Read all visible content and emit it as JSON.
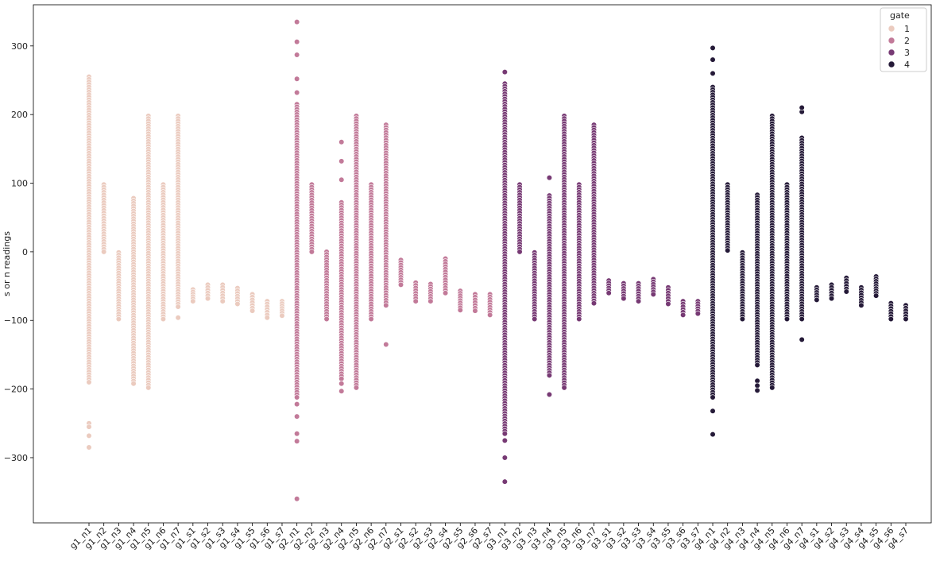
{
  "chart_data": {
    "type": "scatter",
    "title": "",
    "xlabel": "",
    "ylabel": "s or n readings",
    "ylim": [
      -395,
      360
    ],
    "yticks": [
      -300,
      -200,
      -100,
      0,
      100,
      200,
      300
    ],
    "grid": false,
    "legend": {
      "title": "gate",
      "placement": "top-right",
      "entries": [
        {
          "label": "1",
          "color": "#ebcbbf"
        },
        {
          "label": "2",
          "color": "#c27a99"
        },
        {
          "label": "3",
          "color": "#773a74"
        },
        {
          "label": "4",
          "color": "#251a38"
        }
      ]
    },
    "categories": [
      "g1_n1",
      "g1_n2",
      "g1_n3",
      "g1_n4",
      "g1_n5",
      "g1_n6",
      "g1_n7",
      "g1_s1",
      "g1_s2",
      "g1_s3",
      "g1_s4",
      "g1_s5",
      "g1_s6",
      "g1_s7",
      "g2_n1",
      "g2_n2",
      "g2_n3",
      "g2_n4",
      "g2_n5",
      "g2_n6",
      "g2_n7",
      "g2_s1",
      "g2_s2",
      "g2_s3",
      "g2_s4",
      "g2_s5",
      "g2_s6",
      "g2_s7",
      "g3_n1",
      "g3_n2",
      "g3_n3",
      "g3_n4",
      "g3_n5",
      "g3_n6",
      "g3_n7",
      "g3_s1",
      "g3_s2",
      "g3_s3",
      "g3_s4",
      "g3_s5",
      "g3_s6",
      "g3_s7",
      "g4_n1",
      "g4_n2",
      "g4_n3",
      "g4_n4",
      "g4_n5",
      "g4_n6",
      "g4_n7",
      "g4_s1",
      "g4_s2",
      "g4_s3",
      "g4_s4",
      "g4_s5",
      "g4_s6",
      "g4_s7"
    ],
    "series": [
      {
        "gate": "1",
        "color": "#ebcbbf",
        "columns": [
          {
            "category": "g1_n1",
            "min": -190,
            "max": 255,
            "outliers": [
              -250,
              -255,
              -268,
              -285
            ]
          },
          {
            "category": "g1_n2",
            "min": 0,
            "max": 98,
            "outliers": []
          },
          {
            "category": "g1_n3",
            "min": -98,
            "max": -1,
            "outliers": []
          },
          {
            "category": "g1_n4",
            "min": -192,
            "max": 78,
            "outliers": []
          },
          {
            "category": "g1_n5",
            "min": -198,
            "max": 198,
            "outliers": []
          },
          {
            "category": "g1_n6",
            "min": -98,
            "max": 98,
            "outliers": []
          },
          {
            "category": "g1_n7",
            "min": -80,
            "max": 198,
            "outliers": [
              -96
            ]
          },
          {
            "category": "g1_s1",
            "min": -72,
            "max": -55,
            "outliers": []
          },
          {
            "category": "g1_s2",
            "min": -68,
            "max": -48,
            "outliers": []
          },
          {
            "category": "g1_s3",
            "min": -72,
            "max": -48,
            "outliers": []
          },
          {
            "category": "g1_s4",
            "min": -76,
            "max": -53,
            "outliers": []
          },
          {
            "category": "g1_s5",
            "min": -86,
            "max": -62,
            "outliers": []
          },
          {
            "category": "g1_s6",
            "min": -96,
            "max": -72,
            "outliers": []
          },
          {
            "category": "g1_s7",
            "min": -93,
            "max": -72,
            "outliers": []
          }
        ]
      },
      {
        "gate": "2",
        "color": "#c27a99",
        "columns": [
          {
            "category": "g2_n1",
            "min": -212,
            "max": 215,
            "outliers": [
              -222,
              -240,
              -265,
              -276,
              -360,
              232,
              252,
              287,
              306,
              335
            ]
          },
          {
            "category": "g2_n2",
            "min": 0,
            "max": 98,
            "outliers": []
          },
          {
            "category": "g2_n3",
            "min": -98,
            "max": 0,
            "outliers": []
          },
          {
            "category": "g2_n4",
            "min": -185,
            "max": 72,
            "outliers": [
              -192,
              -203,
              105,
              132,
              160
            ]
          },
          {
            "category": "g2_n5",
            "min": -198,
            "max": 198,
            "outliers": []
          },
          {
            "category": "g2_n6",
            "min": -98,
            "max": 98,
            "outliers": []
          },
          {
            "category": "g2_n7",
            "min": -78,
            "max": 185,
            "outliers": [
              -135
            ]
          },
          {
            "category": "g2_s1",
            "min": -48,
            "max": -12,
            "outliers": []
          },
          {
            "category": "g2_s2",
            "min": -72,
            "max": -45,
            "outliers": []
          },
          {
            "category": "g2_s3",
            "min": -72,
            "max": -47,
            "outliers": []
          },
          {
            "category": "g2_s4",
            "min": -60,
            "max": -10,
            "outliers": []
          },
          {
            "category": "g2_s5",
            "min": -85,
            "max": -57,
            "outliers": []
          },
          {
            "category": "g2_s6",
            "min": -86,
            "max": -62,
            "outliers": []
          },
          {
            "category": "g2_s7",
            "min": -92,
            "max": -62,
            "outliers": []
          }
        ]
      },
      {
        "gate": "3",
        "color": "#773a74",
        "columns": [
          {
            "category": "g3_n1",
            "min": -265,
            "max": 245,
            "outliers": [
              -275,
              -300,
              -335,
              262
            ]
          },
          {
            "category": "g3_n2",
            "min": 0,
            "max": 98,
            "outliers": []
          },
          {
            "category": "g3_n3",
            "min": -98,
            "max": -1,
            "outliers": []
          },
          {
            "category": "g3_n4",
            "min": -180,
            "max": 82,
            "outliers": [
              -208,
              108
            ]
          },
          {
            "category": "g3_n5",
            "min": -198,
            "max": 198,
            "outliers": []
          },
          {
            "category": "g3_n6",
            "min": -98,
            "max": 98,
            "outliers": []
          },
          {
            "category": "g3_n7",
            "min": -75,
            "max": 185,
            "outliers": []
          },
          {
            "category": "g3_s1",
            "min": -60,
            "max": -42,
            "outliers": []
          },
          {
            "category": "g3_s2",
            "min": -68,
            "max": -46,
            "outliers": []
          },
          {
            "category": "g3_s3",
            "min": -72,
            "max": -46,
            "outliers": []
          },
          {
            "category": "g3_s4",
            "min": -62,
            "max": -40,
            "outliers": []
          },
          {
            "category": "g3_s5",
            "min": -76,
            "max": -52,
            "outliers": []
          },
          {
            "category": "g3_s6",
            "min": -92,
            "max": -72,
            "outliers": []
          },
          {
            "category": "g3_s7",
            "min": -90,
            "max": -72,
            "outliers": []
          }
        ]
      },
      {
        "gate": "4",
        "color": "#251a38",
        "columns": [
          {
            "category": "g4_n1",
            "min": -212,
            "max": 240,
            "outliers": [
              -232,
              -266,
              260,
              280,
              297
            ]
          },
          {
            "category": "g4_n2",
            "min": 2,
            "max": 98,
            "outliers": []
          },
          {
            "category": "g4_n3",
            "min": -98,
            "max": -1,
            "outliers": []
          },
          {
            "category": "g4_n4",
            "min": -165,
            "max": 83,
            "outliers": [
              -188,
              -195,
              -202
            ]
          },
          {
            "category": "g4_n5",
            "min": -198,
            "max": 198,
            "outliers": []
          },
          {
            "category": "g4_n6",
            "min": -98,
            "max": 98,
            "outliers": []
          },
          {
            "category": "g4_n7",
            "min": -98,
            "max": 166,
            "outliers": [
              -128,
              204,
              210
            ]
          },
          {
            "category": "g4_s1",
            "min": -70,
            "max": -52,
            "outliers": []
          },
          {
            "category": "g4_s2",
            "min": -68,
            "max": -48,
            "outliers": []
          },
          {
            "category": "g4_s3",
            "min": -58,
            "max": -38,
            "outliers": []
          },
          {
            "category": "g4_s4",
            "min": -78,
            "max": -52,
            "outliers": []
          },
          {
            "category": "g4_s5",
            "min": -64,
            "max": -36,
            "outliers": []
          },
          {
            "category": "g4_s6",
            "min": -98,
            "max": -75,
            "outliers": []
          },
          {
            "category": "g4_s7",
            "min": -98,
            "max": -78,
            "outliers": []
          }
        ]
      }
    ]
  }
}
